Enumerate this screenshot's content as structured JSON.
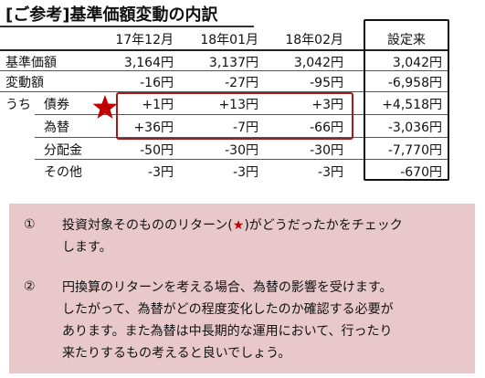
{
  "title": "[ご参考]基準価額変動の内訳",
  "columns": [
    "17年12月",
    "18年01月",
    "18年02月",
    "設定来"
  ],
  "rows": [
    {
      "label": "基準価額",
      "values": [
        "3,164円",
        "3,137円",
        "3,042円",
        "3,042円"
      ]
    },
    {
      "label": "変動額",
      "values": [
        "-16円",
        "-27円",
        "-95円",
        "-6,958円"
      ]
    },
    {
      "label_prefix": "うち",
      "label": "債券",
      "values": [
        "+1円",
        "+13円",
        "+3円",
        "+4,518円"
      ]
    },
    {
      "label": "為替",
      "values": [
        "+36円",
        "-7円",
        "-66円",
        "-3,036円"
      ]
    },
    {
      "label": "分配金",
      "values": [
        "-50円",
        "-30円",
        "-30円",
        "-7,770円"
      ]
    },
    {
      "label": "その他",
      "values": [
        "-3円",
        "-3円",
        "-3円",
        "-670円"
      ]
    }
  ],
  "notes": [
    {
      "number": "①",
      "lines": [
        "投資対象そのもののリターン(",
        "★",
        ")がどうだったかをチェック",
        "します。"
      ]
    },
    {
      "number": "②",
      "lines": [
        "円換算のリターンを考える場合、為替の影響を受けます。",
        "したがって、為替がどの程度変化したのか確認する必要が",
        "あります。また為替は中長期的な運用において、行ったり",
        "来たりするもの考えると良いでしょう。"
      ]
    }
  ],
  "colors": {
    "highlight_box": "#a81919",
    "star": "#c00000",
    "note_bg": "#e8c8cb"
  }
}
